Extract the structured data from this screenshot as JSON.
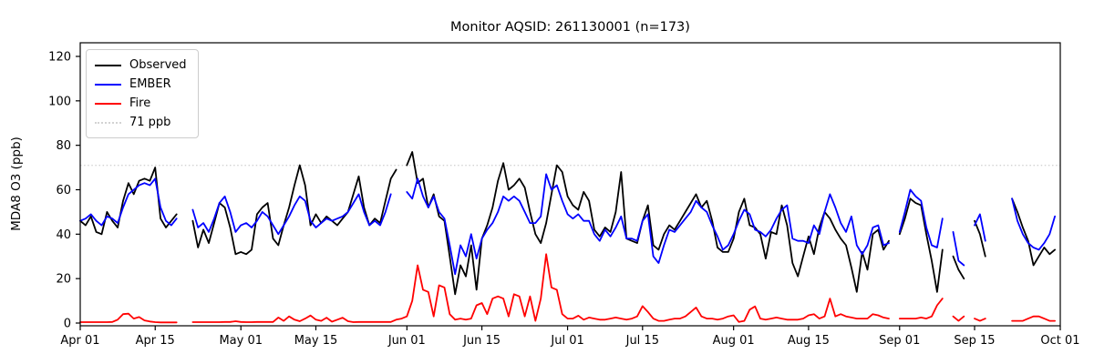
{
  "chart_data": {
    "type": "line",
    "title": "Monitor AQSID: 261130001 (n=173)",
    "xlabel": "",
    "ylabel": "MDA8 O3 (ppb)",
    "ylim": [
      -1,
      126
    ],
    "yticks": [
      0,
      20,
      40,
      60,
      80,
      100,
      120
    ],
    "x_total_days": 183,
    "xticks": [
      {
        "day": 0,
        "label": "Apr 01"
      },
      {
        "day": 14,
        "label": "Apr 15"
      },
      {
        "day": 30,
        "label": "May 01"
      },
      {
        "day": 44,
        "label": "May 15"
      },
      {
        "day": 61,
        "label": "Jun 01"
      },
      {
        "day": 75,
        "label": "Jun 15"
      },
      {
        "day": 91,
        "label": "Jul 01"
      },
      {
        "day": 105,
        "label": "Jul 15"
      },
      {
        "day": 122,
        "label": "Aug 01"
      },
      {
        "day": 136,
        "label": "Aug 15"
      },
      {
        "day": 153,
        "label": "Sep 01"
      },
      {
        "day": 167,
        "label": "Sep 15"
      },
      {
        "day": 183,
        "label": "Oct 01"
      }
    ],
    "grid": false,
    "legend_position": "upper left",
    "legend_items": [
      {
        "label": "Observed",
        "color": "#000000",
        "style": "solid"
      },
      {
        "label": "EMBER",
        "color": "#0000ff",
        "style": "solid"
      },
      {
        "label": "Fire",
        "color": "#ff0000",
        "style": "solid"
      },
      {
        "label": "71 ppb",
        "color": "#d3d3d3",
        "style": "dotted"
      }
    ],
    "reference_line": {
      "value": 71,
      "label": "71 ppb",
      "color": "#d3d3d3",
      "style": "dotted"
    },
    "series": [
      {
        "name": "Observed",
        "color": "#000000",
        "values": [
          46,
          44,
          48,
          41,
          40,
          50,
          46,
          43,
          55,
          63,
          58,
          64,
          65,
          64,
          70,
          47,
          43,
          46,
          49,
          null,
          null,
          46,
          34,
          42,
          36,
          45,
          54,
          52,
          43,
          31,
          32,
          31,
          33,
          49,
          52,
          54,
          38,
          35,
          44,
          52,
          62,
          71,
          62,
          44,
          49,
          45,
          48,
          46,
          44,
          47,
          50,
          58,
          66,
          52,
          44,
          47,
          45,
          55,
          65,
          69,
          null,
          71,
          77,
          63,
          65,
          52,
          58,
          48,
          46,
          30,
          13,
          26,
          21,
          35,
          15,
          38,
          44,
          52,
          64,
          72,
          60,
          62,
          65,
          61,
          50,
          40,
          36,
          45,
          58,
          71,
          68,
          57,
          53,
          51,
          59,
          55,
          42,
          39,
          43,
          41,
          50,
          68,
          38,
          37,
          36,
          46,
          53,
          35,
          33,
          40,
          44,
          42,
          46,
          50,
          54,
          58,
          52,
          55,
          46,
          34,
          32,
          32,
          38,
          50,
          56,
          44,
          43,
          40,
          29,
          41,
          40,
          53,
          44,
          27,
          21,
          30,
          39,
          31,
          43,
          50,
          47,
          42,
          38,
          35,
          25,
          14,
          32,
          24,
          40,
          42,
          33,
          37,
          null,
          40,
          47,
          56,
          54,
          53,
          40,
          28,
          14,
          33,
          null,
          30,
          24,
          20,
          null,
          46,
          40,
          30,
          null,
          null,
          null,
          null,
          56,
          50,
          43,
          37,
          26,
          30,
          34,
          31,
          33
        ]
      },
      {
        "name": "EMBER",
        "color": "#0000ff",
        "values": [
          46,
          47,
          49,
          46,
          44,
          48,
          47,
          45,
          52,
          58,
          60,
          62,
          63,
          62,
          65,
          52,
          46,
          44,
          47,
          null,
          null,
          51,
          43,
          45,
          41,
          47,
          54,
          57,
          50,
          41,
          44,
          45,
          43,
          46,
          50,
          48,
          44,
          40,
          44,
          48,
          53,
          57,
          55,
          46,
          43,
          45,
          47,
          46,
          47,
          48,
          50,
          54,
          58,
          50,
          44,
          46,
          44,
          50,
          58,
          null,
          null,
          59,
          56,
          65,
          57,
          52,
          57,
          50,
          47,
          35,
          22,
          35,
          30,
          40,
          29,
          38,
          42,
          45,
          50,
          57,
          55,
          57,
          55,
          50,
          45,
          45,
          48,
          67,
          60,
          62,
          55,
          49,
          47,
          49,
          46,
          46,
          40,
          37,
          42,
          39,
          43,
          48,
          38,
          38,
          37,
          46,
          49,
          30,
          27,
          35,
          42,
          41,
          44,
          47,
          50,
          55,
          52,
          50,
          44,
          39,
          33,
          35,
          40,
          46,
          51,
          49,
          42,
          41,
          39,
          42,
          47,
          51,
          53,
          38,
          37,
          37,
          36,
          44,
          40,
          50,
          58,
          52,
          45,
          41,
          48,
          35,
          31,
          35,
          43,
          44,
          35,
          36,
          null,
          41,
          50,
          60,
          57,
          55,
          43,
          35,
          34,
          47,
          null,
          41,
          28,
          26,
          null,
          44,
          49,
          37,
          null,
          null,
          null,
          null,
          56,
          46,
          40,
          36,
          34,
          33,
          36,
          40,
          48
        ]
      },
      {
        "name": "Fire",
        "color": "#ff0000",
        "values": [
          0.4,
          0.4,
          0.4,
          0.4,
          0.4,
          0.4,
          0.5,
          1.5,
          4,
          4.2,
          2,
          2.7,
          1.2,
          0.7,
          0.4,
          0.3,
          0.3,
          0.3,
          0.3,
          null,
          null,
          0.4,
          0.4,
          0.4,
          0.4,
          0.4,
          0.4,
          0.5,
          0.5,
          0.8,
          0.5,
          0.4,
          0.4,
          0.5,
          0.5,
          0.5,
          0.5,
          2.5,
          1,
          3,
          1.5,
          0.8,
          2,
          3.4,
          1.5,
          1,
          2.4,
          0.6,
          1.5,
          2.4,
          0.8,
          0.4,
          0.5,
          0.5,
          0.5,
          0.5,
          0.5,
          0.5,
          0.5,
          1.5,
          2,
          3,
          10,
          26,
          15,
          14,
          3,
          17,
          16,
          4,
          1.5,
          2,
          1.5,
          2,
          8,
          9,
          4,
          11,
          12,
          11,
          3,
          13,
          12,
          3,
          12,
          1,
          11,
          31,
          16,
          15,
          4,
          2,
          2,
          3.3,
          1.5,
          2.5,
          2,
          1.5,
          1.5,
          2,
          2.5,
          2,
          1.5,
          2,
          3,
          7.6,
          5,
          2,
          1,
          1,
          1.5,
          2,
          2,
          3,
          5,
          7,
          3,
          2,
          2,
          1.5,
          2,
          3,
          3.5,
          0.5,
          1,
          6,
          7.5,
          2,
          1.5,
          2,
          2.5,
          2,
          1.5,
          1.5,
          1.5,
          2,
          3.5,
          4,
          2,
          3,
          11,
          3,
          4,
          3,
          2.5,
          2,
          2,
          2,
          4,
          3.5,
          2.5,
          2,
          null,
          2,
          2,
          2,
          2,
          2.5,
          2,
          3,
          8,
          11,
          null,
          3,
          1,
          3,
          null,
          2,
          1,
          2,
          null,
          null,
          null,
          null,
          1,
          1,
          1,
          2,
          3,
          3,
          2,
          1,
          1
        ]
      }
    ]
  }
}
